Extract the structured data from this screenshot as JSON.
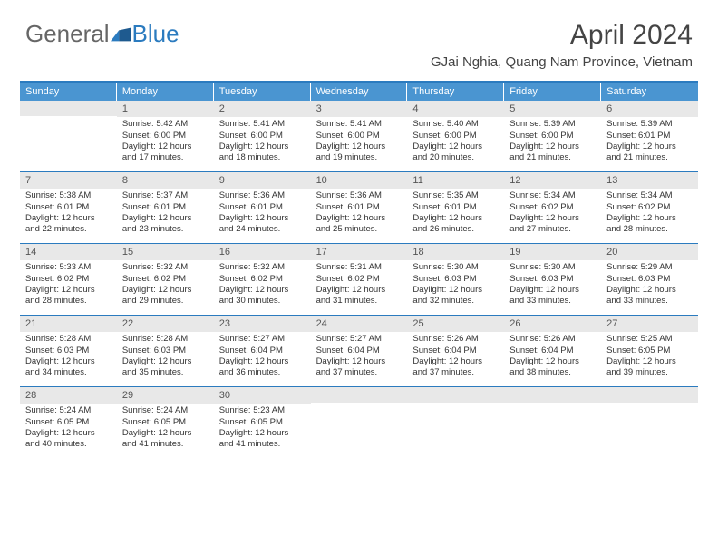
{
  "brand": {
    "part1": "General",
    "part2": "Blue"
  },
  "title": "April 2024",
  "location": "GJai Nghia, Quang Nam Province, Vietnam",
  "colors": {
    "accent": "#2b7bbf",
    "header_bg": "#4a95d1",
    "day_num_bg": "#e8e8e8",
    "text": "#333333"
  },
  "dow": [
    "Sunday",
    "Monday",
    "Tuesday",
    "Wednesday",
    "Thursday",
    "Friday",
    "Saturday"
  ],
  "weeks": [
    [
      {
        "num": "",
        "lines": []
      },
      {
        "num": "1",
        "lines": [
          "Sunrise: 5:42 AM",
          "Sunset: 6:00 PM",
          "Daylight: 12 hours and 17 minutes."
        ]
      },
      {
        "num": "2",
        "lines": [
          "Sunrise: 5:41 AM",
          "Sunset: 6:00 PM",
          "Daylight: 12 hours and 18 minutes."
        ]
      },
      {
        "num": "3",
        "lines": [
          "Sunrise: 5:41 AM",
          "Sunset: 6:00 PM",
          "Daylight: 12 hours and 19 minutes."
        ]
      },
      {
        "num": "4",
        "lines": [
          "Sunrise: 5:40 AM",
          "Sunset: 6:00 PM",
          "Daylight: 12 hours and 20 minutes."
        ]
      },
      {
        "num": "5",
        "lines": [
          "Sunrise: 5:39 AM",
          "Sunset: 6:00 PM",
          "Daylight: 12 hours and 21 minutes."
        ]
      },
      {
        "num": "6",
        "lines": [
          "Sunrise: 5:39 AM",
          "Sunset: 6:01 PM",
          "Daylight: 12 hours and 21 minutes."
        ]
      }
    ],
    [
      {
        "num": "7",
        "lines": [
          "Sunrise: 5:38 AM",
          "Sunset: 6:01 PM",
          "Daylight: 12 hours and 22 minutes."
        ]
      },
      {
        "num": "8",
        "lines": [
          "Sunrise: 5:37 AM",
          "Sunset: 6:01 PM",
          "Daylight: 12 hours and 23 minutes."
        ]
      },
      {
        "num": "9",
        "lines": [
          "Sunrise: 5:36 AM",
          "Sunset: 6:01 PM",
          "Daylight: 12 hours and 24 minutes."
        ]
      },
      {
        "num": "10",
        "lines": [
          "Sunrise: 5:36 AM",
          "Sunset: 6:01 PM",
          "Daylight: 12 hours and 25 minutes."
        ]
      },
      {
        "num": "11",
        "lines": [
          "Sunrise: 5:35 AM",
          "Sunset: 6:01 PM",
          "Daylight: 12 hours and 26 minutes."
        ]
      },
      {
        "num": "12",
        "lines": [
          "Sunrise: 5:34 AM",
          "Sunset: 6:02 PM",
          "Daylight: 12 hours and 27 minutes."
        ]
      },
      {
        "num": "13",
        "lines": [
          "Sunrise: 5:34 AM",
          "Sunset: 6:02 PM",
          "Daylight: 12 hours and 28 minutes."
        ]
      }
    ],
    [
      {
        "num": "14",
        "lines": [
          "Sunrise: 5:33 AM",
          "Sunset: 6:02 PM",
          "Daylight: 12 hours and 28 minutes."
        ]
      },
      {
        "num": "15",
        "lines": [
          "Sunrise: 5:32 AM",
          "Sunset: 6:02 PM",
          "Daylight: 12 hours and 29 minutes."
        ]
      },
      {
        "num": "16",
        "lines": [
          "Sunrise: 5:32 AM",
          "Sunset: 6:02 PM",
          "Daylight: 12 hours and 30 minutes."
        ]
      },
      {
        "num": "17",
        "lines": [
          "Sunrise: 5:31 AM",
          "Sunset: 6:02 PM",
          "Daylight: 12 hours and 31 minutes."
        ]
      },
      {
        "num": "18",
        "lines": [
          "Sunrise: 5:30 AM",
          "Sunset: 6:03 PM",
          "Daylight: 12 hours and 32 minutes."
        ]
      },
      {
        "num": "19",
        "lines": [
          "Sunrise: 5:30 AM",
          "Sunset: 6:03 PM",
          "Daylight: 12 hours and 33 minutes."
        ]
      },
      {
        "num": "20",
        "lines": [
          "Sunrise: 5:29 AM",
          "Sunset: 6:03 PM",
          "Daylight: 12 hours and 33 minutes."
        ]
      }
    ],
    [
      {
        "num": "21",
        "lines": [
          "Sunrise: 5:28 AM",
          "Sunset: 6:03 PM",
          "Daylight: 12 hours and 34 minutes."
        ]
      },
      {
        "num": "22",
        "lines": [
          "Sunrise: 5:28 AM",
          "Sunset: 6:03 PM",
          "Daylight: 12 hours and 35 minutes."
        ]
      },
      {
        "num": "23",
        "lines": [
          "Sunrise: 5:27 AM",
          "Sunset: 6:04 PM",
          "Daylight: 12 hours and 36 minutes."
        ]
      },
      {
        "num": "24",
        "lines": [
          "Sunrise: 5:27 AM",
          "Sunset: 6:04 PM",
          "Daylight: 12 hours and 37 minutes."
        ]
      },
      {
        "num": "25",
        "lines": [
          "Sunrise: 5:26 AM",
          "Sunset: 6:04 PM",
          "Daylight: 12 hours and 37 minutes."
        ]
      },
      {
        "num": "26",
        "lines": [
          "Sunrise: 5:26 AM",
          "Sunset: 6:04 PM",
          "Daylight: 12 hours and 38 minutes."
        ]
      },
      {
        "num": "27",
        "lines": [
          "Sunrise: 5:25 AM",
          "Sunset: 6:05 PM",
          "Daylight: 12 hours and 39 minutes."
        ]
      }
    ],
    [
      {
        "num": "28",
        "lines": [
          "Sunrise: 5:24 AM",
          "Sunset: 6:05 PM",
          "Daylight: 12 hours and 40 minutes."
        ]
      },
      {
        "num": "29",
        "lines": [
          "Sunrise: 5:24 AM",
          "Sunset: 6:05 PM",
          "Daylight: 12 hours and 41 minutes."
        ]
      },
      {
        "num": "30",
        "lines": [
          "Sunrise: 5:23 AM",
          "Sunset: 6:05 PM",
          "Daylight: 12 hours and 41 minutes."
        ]
      },
      {
        "num": "",
        "lines": []
      },
      {
        "num": "",
        "lines": []
      },
      {
        "num": "",
        "lines": []
      },
      {
        "num": "",
        "lines": []
      }
    ]
  ]
}
